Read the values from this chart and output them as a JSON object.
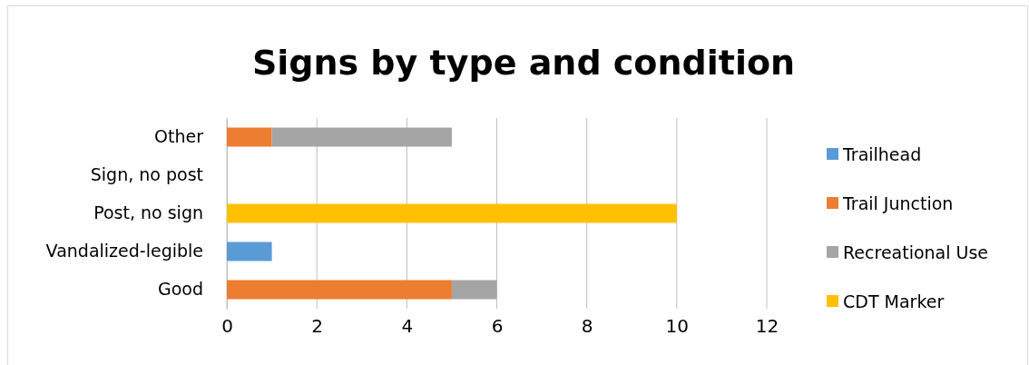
{
  "chart_data": {
    "type": "bar",
    "orientation": "horizontal",
    "stacked": true,
    "title": "Signs by type and condition",
    "categories": [
      "Other",
      "Sign, no post",
      "Post, no sign",
      "Vandalized-legible",
      "Good"
    ],
    "series": [
      {
        "name": "Trailhead",
        "color": "#5b9bd5",
        "values": [
          null,
          null,
          null,
          1,
          null
        ]
      },
      {
        "name": "Trail Junction",
        "color": "#ed7d31",
        "values": [
          1,
          null,
          null,
          null,
          5
        ]
      },
      {
        "name": "Recreational Use",
        "color": "#a5a5a5",
        "values": [
          4,
          null,
          null,
          null,
          1
        ]
      },
      {
        "name": "CDT Marker",
        "color": "#ffc000",
        "values": [
          null,
          null,
          10,
          null,
          null
        ]
      }
    ],
    "xlim": [
      0,
      12
    ],
    "xticks": [
      0,
      2,
      4,
      6,
      8,
      10,
      12
    ],
    "grid": "x",
    "legend": "right"
  }
}
